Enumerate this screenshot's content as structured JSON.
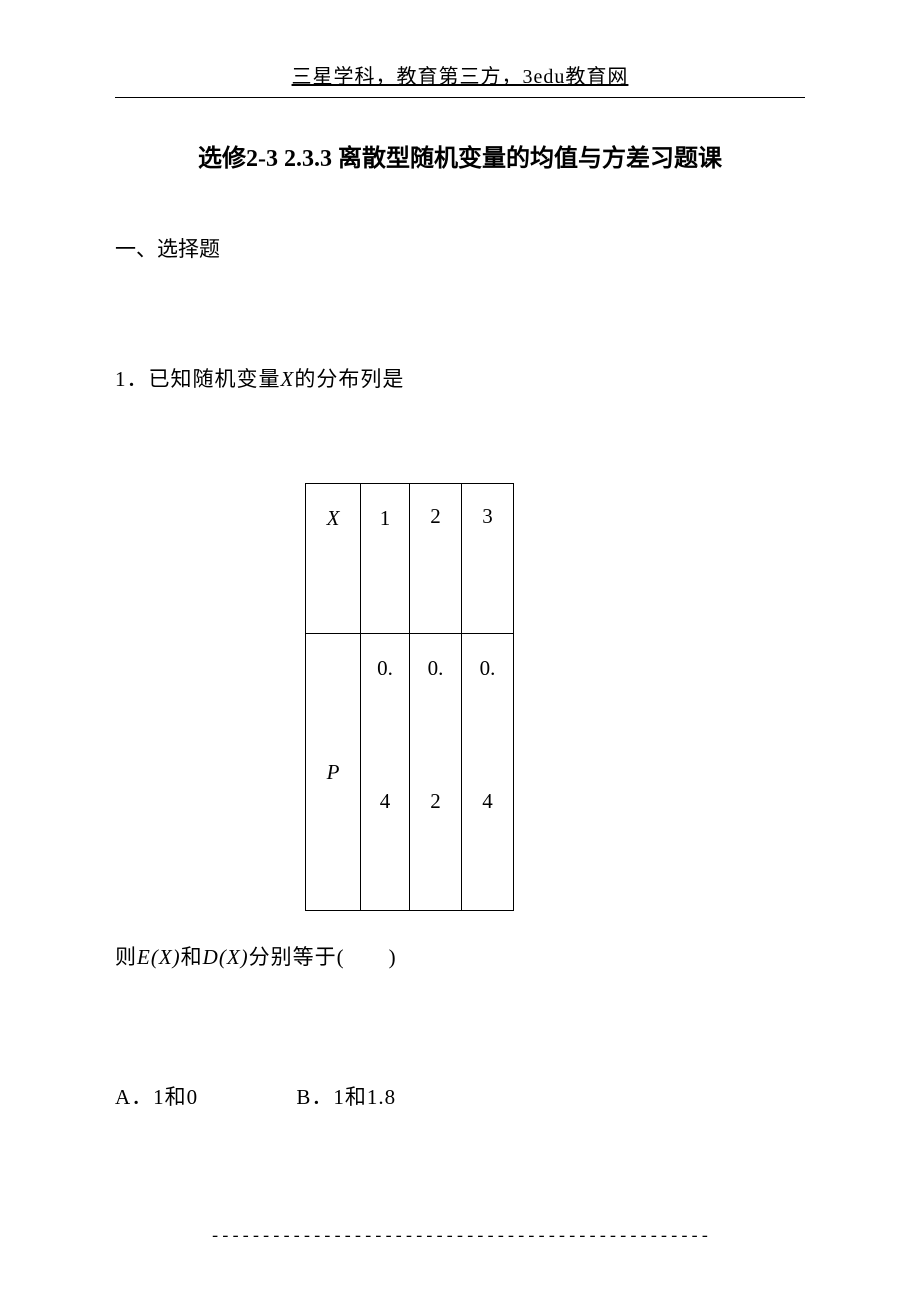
{
  "header": "三星学科，教育第三方，3edu教育网",
  "title_prefix": "选修2-3  2.3.3 ",
  "title_main": "离散型随机变量的均值与方差习题课",
  "section": "一、选择题",
  "question_num": "1．",
  "question_text_a": "已知随机变量",
  "question_var": "X",
  "question_text_b": "的分布列是",
  "table": {
    "row1": [
      "X",
      "1",
      "2",
      "3"
    ],
    "row2_label": "P",
    "row2_vals_top": [
      "0.",
      "0.",
      "0."
    ],
    "row2_vals_bot": [
      "4",
      "2",
      "4"
    ]
  },
  "after_table_a": "则",
  "after_table_e": "E",
  "after_table_x1": "(X)",
  "after_table_mid": "和",
  "after_table_d": "D",
  "after_table_x2": "(X)",
  "after_table_b": "分别等于(　　)",
  "optA": "A．1和0",
  "optB": "B．1和1.8",
  "footer": "-------------------------------------------------"
}
